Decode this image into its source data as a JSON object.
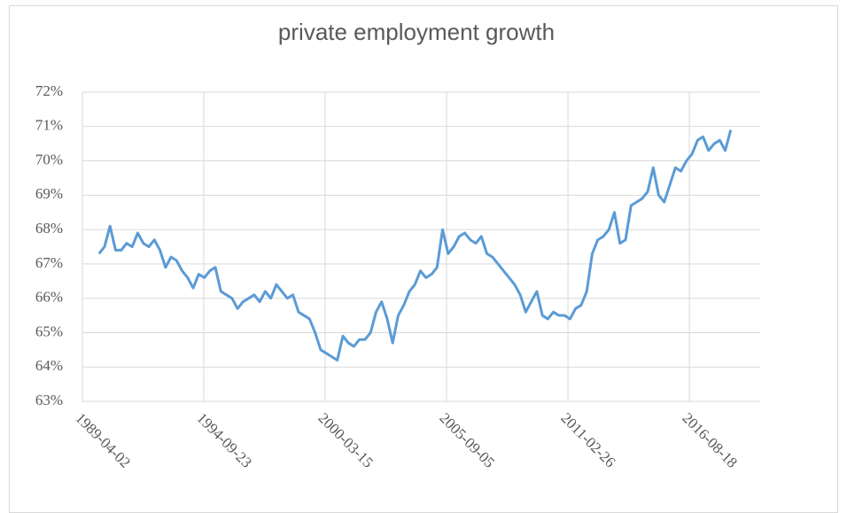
{
  "chart_data": {
    "type": "line",
    "title": "private employment growth",
    "x": [
      "1990-01-01",
      "1990-04-01",
      "1990-07-01",
      "1990-10-01",
      "1991-01-01",
      "1991-04-01",
      "1991-07-01",
      "1991-10-01",
      "1992-01-01",
      "1992-04-01",
      "1992-07-01",
      "1992-10-01",
      "1993-01-01",
      "1993-04-01",
      "1993-07-01",
      "1993-10-01",
      "1994-01-01",
      "1994-04-01",
      "1994-07-01",
      "1994-10-01",
      "1995-01-01",
      "1995-04-01",
      "1995-07-01",
      "1995-10-01",
      "1996-01-01",
      "1996-04-01",
      "1996-07-01",
      "1996-10-01",
      "1997-01-01",
      "1997-04-01",
      "1997-07-01",
      "1997-10-01",
      "1998-01-01",
      "1998-04-01",
      "1998-07-01",
      "1998-10-01",
      "1999-01-01",
      "1999-04-01",
      "1999-07-01",
      "1999-10-01",
      "2000-01-01",
      "2000-04-01",
      "2000-07-01",
      "2000-10-01",
      "2001-01-01",
      "2001-04-01",
      "2001-07-01",
      "2001-10-01",
      "2002-01-01",
      "2002-04-01",
      "2002-07-01",
      "2002-10-01",
      "2003-01-01",
      "2003-04-01",
      "2003-07-01",
      "2003-10-01",
      "2004-01-01",
      "2004-04-01",
      "2004-07-01",
      "2004-10-01",
      "2005-01-01",
      "2005-04-01",
      "2005-07-01",
      "2005-10-01",
      "2006-01-01",
      "2006-04-01",
      "2006-07-01",
      "2006-10-01",
      "2007-01-01",
      "2007-04-01",
      "2007-07-01",
      "2007-10-01",
      "2008-01-01",
      "2008-04-01",
      "2008-07-01",
      "2008-10-01",
      "2009-01-01",
      "2009-04-01",
      "2009-07-01",
      "2009-10-01",
      "2010-01-01",
      "2010-04-01",
      "2010-07-01",
      "2010-10-01",
      "2011-01-01",
      "2011-04-01",
      "2011-07-01",
      "2011-10-01",
      "2012-01-01",
      "2012-04-01",
      "2012-07-01",
      "2012-10-01",
      "2013-01-01",
      "2013-04-01",
      "2013-07-01",
      "2013-10-01",
      "2014-01-01",
      "2014-04-01",
      "2014-07-01",
      "2014-10-01",
      "2015-01-01",
      "2015-04-01",
      "2015-07-01",
      "2015-10-01",
      "2016-01-01",
      "2016-04-01",
      "2016-07-01",
      "2016-10-01",
      "2017-01-01",
      "2017-04-01",
      "2017-07-01",
      "2017-10-01",
      "2018-01-01",
      "2018-04-01",
      "2018-07-01"
    ],
    "series": [
      {
        "name": "private employment growth",
        "color": "#5b9bd5",
        "values": [
          67.3,
          67.5,
          68.1,
          67.4,
          67.4,
          67.6,
          67.5,
          67.9,
          67.6,
          67.5,
          67.7,
          67.4,
          66.9,
          67.2,
          67.1,
          66.8,
          66.6,
          66.3,
          66.7,
          66.6,
          66.8,
          66.9,
          66.2,
          66.1,
          66.0,
          65.7,
          65.9,
          66.0,
          66.1,
          65.9,
          66.2,
          66.0,
          66.4,
          66.2,
          66.0,
          66.1,
          65.6,
          65.5,
          65.4,
          65.0,
          64.5,
          64.4,
          64.3,
          64.2,
          64.9,
          64.7,
          64.6,
          64.8,
          64.8,
          65.0,
          65.6,
          65.9,
          65.4,
          64.7,
          65.5,
          65.8,
          66.2,
          66.4,
          66.8,
          66.6,
          66.7,
          66.9,
          68.0,
          67.3,
          67.5,
          67.8,
          67.9,
          67.7,
          67.6,
          67.8,
          67.3,
          67.2,
          67.0,
          66.8,
          66.6,
          66.4,
          66.1,
          65.6,
          65.9,
          66.2,
          65.5,
          65.4,
          65.6,
          65.5,
          65.5,
          65.4,
          65.7,
          65.8,
          66.2,
          67.3,
          67.7,
          67.8,
          68.0,
          68.5,
          67.6,
          67.7,
          68.7,
          68.8,
          68.9,
          69.1,
          69.8,
          69.0,
          68.8,
          69.3,
          69.8,
          69.7,
          70.0,
          70.2,
          70.6,
          70.7,
          70.3,
          70.5,
          70.6,
          70.3,
          70.9
        ]
      }
    ],
    "xlim": [
      "1989-04-02",
      "2019-10-29"
    ],
    "xticks": [
      "1989-04-02",
      "1994-09-23",
      "2000-03-15",
      "2005-09-05",
      "2011-02-26",
      "2016-08-18"
    ],
    "ylim": [
      63,
      72
    ],
    "yticks": [
      {
        "value": 63,
        "label": "63%"
      },
      {
        "value": 64,
        "label": "64%"
      },
      {
        "value": 65,
        "label": "65%"
      },
      {
        "value": 66,
        "label": "66%"
      },
      {
        "value": 67,
        "label": "67%"
      },
      {
        "value": 68,
        "label": "68%"
      },
      {
        "value": 69,
        "label": "69%"
      },
      {
        "value": 70,
        "label": "70%"
      },
      {
        "value": 71,
        "label": "71%"
      },
      {
        "value": 72,
        "label": "72%"
      }
    ],
    "grid": true
  }
}
